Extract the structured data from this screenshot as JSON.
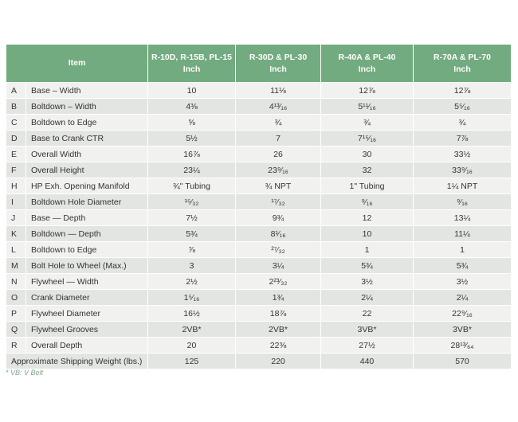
{
  "table": {
    "header": [
      "Item",
      "R-10D, R-15B, PL-15\nInch",
      "R-30D & PL-30\nInch",
      "R-40A & PL-40\nInch",
      "R-70A & PL-70\nInch"
    ],
    "rows": [
      [
        "A",
        "Base – Width",
        "10",
        "11⅛",
        "12⅞",
        "12⅞"
      ],
      [
        "B",
        "Boltdown – Width",
        "4⅜",
        "4¹³⁄₁₆",
        "5¹¹⁄₁₆",
        "5⁵⁄₁₆"
      ],
      [
        "C",
        "Boltdown to Edge",
        "⅝",
        "¾",
        "¾",
        "¾"
      ],
      [
        "D",
        "Base to Crank CTR",
        "5½",
        "7",
        "7¹⁵⁄₁₆",
        "7⅞"
      ],
      [
        "E",
        "Overall Width",
        "16⅞",
        "26",
        "30",
        "33½"
      ],
      [
        "F",
        "Overall Height",
        "23¼",
        "23⁹⁄₁₆",
        "32",
        "33⁹⁄₁₆"
      ],
      [
        "H",
        "HP Exh. Opening Manifold",
        "¾\" Tubing",
        "¾ NPT",
        "1\" Tubing",
        "1¼ NPT"
      ],
      [
        "I",
        "Boltdown Hole Diameter",
        "¹⁵⁄₃₂",
        "¹⁷⁄₃₂",
        "⁹⁄₁₆",
        "⁹⁄₁₆"
      ],
      [
        "J",
        "Base — Depth",
        "7½",
        "9¾",
        "12",
        "13¼"
      ],
      [
        "K",
        "Boltdown — Depth",
        "5¾",
        "8¹⁄₁₆",
        "10",
        "11¼"
      ],
      [
        "L",
        "Boltdown to Edge",
        "⅞",
        "²⁷⁄₃₂",
        "1",
        "1"
      ],
      [
        "M",
        "Bolt Hole to Wheel (Max.)",
        "3",
        "3¼",
        "5¾",
        "5¾"
      ],
      [
        "N",
        "Flywheel — Width",
        "2½",
        "2²³⁄₃₂",
        "3½",
        "3½"
      ],
      [
        "O",
        "Crank Diameter",
        "1⁵⁄₁₆",
        "1¾",
        "2¼",
        "2¼"
      ],
      [
        "P",
        "Flywheel Diameter",
        "16½",
        "18⅞",
        "22",
        "22⁹⁄₁₆"
      ],
      [
        "Q",
        "Flywheel Grooves",
        "2VB*",
        "2VB*",
        "3VB*",
        "3VB*"
      ],
      [
        "R",
        "Overall Depth",
        "20",
        "22⅜",
        "27½",
        "28¹³⁄₆₄"
      ]
    ],
    "shipping_row": [
      "Approximate Shipping Weight (lbs.)",
      "125",
      "220",
      "440",
      "570"
    ],
    "footnote": "* VB: V Belt"
  }
}
